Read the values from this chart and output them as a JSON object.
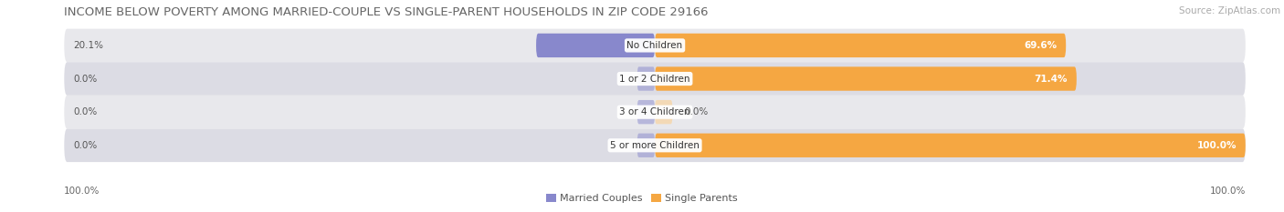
{
  "title": "INCOME BELOW POVERTY AMONG MARRIED-COUPLE VS SINGLE-PARENT HOUSEHOLDS IN ZIP CODE 29166",
  "source": "Source: ZipAtlas.com",
  "categories": [
    "No Children",
    "1 or 2 Children",
    "3 or 4 Children",
    "5 or more Children"
  ],
  "married_values": [
    20.1,
    0.0,
    0.0,
    0.0
  ],
  "single_values": [
    69.6,
    71.4,
    0.0,
    100.0
  ],
  "married_color": "#8888cc",
  "single_color": "#f5a742",
  "single_color_light": "#f9d4a0",
  "row_colors": [
    "#e8e8ec",
    "#dcdce4"
  ],
  "axis_left_label": "100.0%",
  "axis_right_label": "100.0%",
  "title_fontsize": 9.5,
  "source_fontsize": 7.5,
  "label_fontsize": 7.5,
  "cat_fontsize": 7.5,
  "legend_fontsize": 8,
  "background_color": "#ffffff",
  "max_value": 100.0
}
